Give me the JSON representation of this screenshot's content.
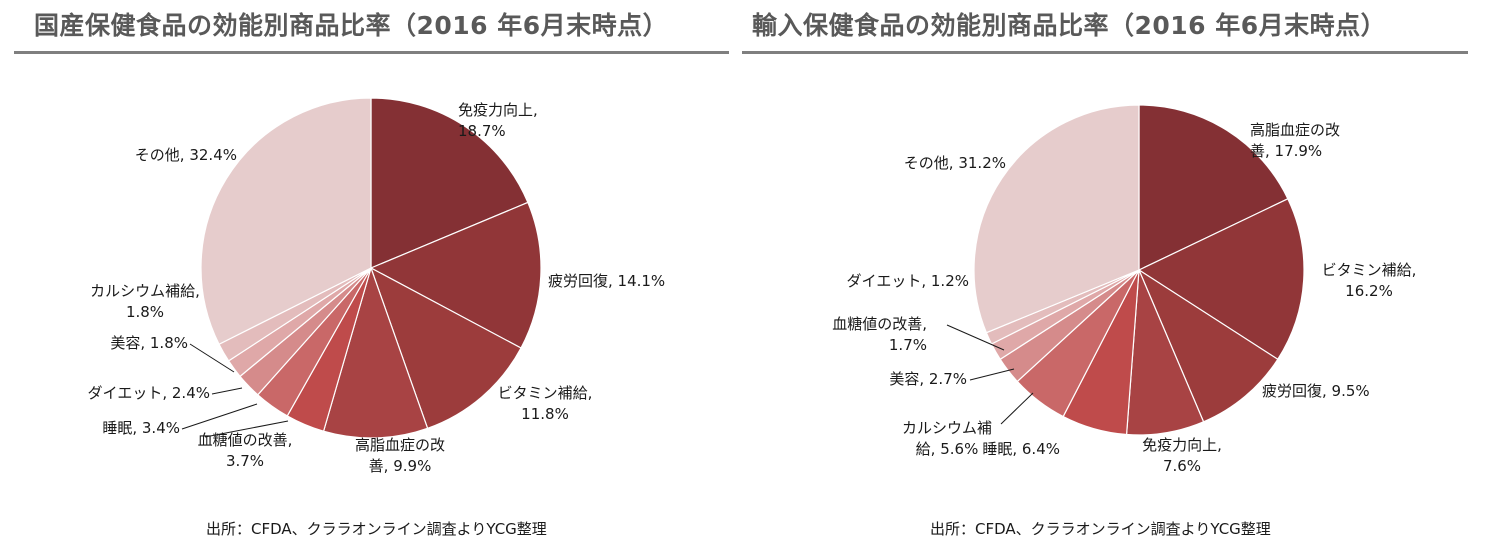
{
  "charts": {
    "left": {
      "title": "国産保健食品の効能別商品比率（2016 年6月末時点）",
      "source": "出所：CFDA、クララオンライン調査よりYCG整理"
    },
    "right": {
      "title": "輸入保健食品の効能別商品比率（2016 年6月末時点）",
      "source": "出所：CFDA、クララオンライン調査よりYCG整理"
    }
  },
  "chart_data": [
    {
      "type": "pie",
      "title": "国産保健食品の効能別商品比率（2016 年6月末時点）",
      "slices": [
        {
          "label": "免疫力向上",
          "value": 18.7,
          "value_label": "18.7%",
          "color": "#843034",
          "label_lines": [
            "免疫力向上,",
            "18.7%"
          ]
        },
        {
          "label": "疲労回復",
          "value": 14.1,
          "value_label": "14.1%",
          "color": "#913638",
          "label_lines": [
            "疲労回復, 14.1%"
          ]
        },
        {
          "label": "ビタミン補給",
          "value": 11.8,
          "value_label": "11.8%",
          "color": "#9c3c3c",
          "label_lines": [
            "ビタミン補給,",
            "11.8%"
          ]
        },
        {
          "label": "高脂血症の改善",
          "value": 9.9,
          "value_label": "9.9%",
          "color": "#a84344",
          "label_lines": [
            "高脂血症の改",
            "善, 9.9%"
          ]
        },
        {
          "label": "血糖値の改善",
          "value": 3.7,
          "value_label": "3.7%",
          "color": "#bf4b4b",
          "label_lines": [
            "血糖値の改善,",
            "3.7%"
          ]
        },
        {
          "label": "睡眠",
          "value": 3.4,
          "value_label": "3.4%",
          "color": "#c96868",
          "label_lines": [
            "睡眠, 3.4%"
          ]
        },
        {
          "label": "ダイエット",
          "value": 2.4,
          "value_label": "2.4%",
          "color": "#d58b8b",
          "label_lines": [
            "ダイエット, 2.4%"
          ]
        },
        {
          "label": "美容",
          "value": 1.8,
          "value_label": "1.8%",
          "color": "#dfa8a8",
          "label_lines": [
            "美容, 1.8%"
          ]
        },
        {
          "label": "カルシウム補給",
          "value": 1.8,
          "value_label": "1.8%",
          "color": "#e3bcbc",
          "label_lines": [
            "カルシウム補給,",
            "1.8%"
          ]
        },
        {
          "label": "その他",
          "value": 32.4,
          "value_label": "32.4%",
          "color": "#e6cccc",
          "label_lines": [
            "その他, 32.4%"
          ]
        }
      ]
    },
    {
      "type": "pie",
      "title": "輸入保健食品の効能別商品比率（2016 年6月末時点）",
      "slices": [
        {
          "label": "高脂血症の改善",
          "value": 17.9,
          "value_label": "17.9%",
          "color": "#843034",
          "label_lines": [
            "高脂血症の改",
            "善, 17.9%"
          ]
        },
        {
          "label": "ビタミン補給",
          "value": 16.2,
          "value_label": "16.2%",
          "color": "#913638",
          "label_lines": [
            "ビタミン補給,",
            "16.2%"
          ]
        },
        {
          "label": "疲労回復",
          "value": 9.5,
          "value_label": "9.5%",
          "color": "#9c3c3c",
          "label_lines": [
            "疲労回復, 9.5%"
          ]
        },
        {
          "label": "免疫力向上",
          "value": 7.6,
          "value_label": "7.6%",
          "color": "#a84344",
          "label_lines": [
            "免疫力向上,",
            "7.6%"
          ]
        },
        {
          "label": "睡眠",
          "value": 6.4,
          "value_label": "6.4%",
          "color": "#bf4b4b",
          "label_lines": [
            "睡眠, 6.4%"
          ]
        },
        {
          "label": "カルシウム補給",
          "value": 5.6,
          "value_label": "5.6%",
          "color": "#c96868",
          "label_lines": [
            "カルシウム補",
            "給, 5.6%"
          ]
        },
        {
          "label": "美容",
          "value": 2.7,
          "value_label": "2.7%",
          "color": "#d58b8b",
          "label_lines": [
            "美容, 2.7%"
          ]
        },
        {
          "label": "血糖値の改善",
          "value": 1.7,
          "value_label": "1.7%",
          "color": "#dfa8a8",
          "label_lines": [
            "血糖値の改善,",
            "1.7%"
          ]
        },
        {
          "label": "ダイエット",
          "value": 1.2,
          "value_label": "1.2%",
          "color": "#e3bcbc",
          "label_lines": [
            "ダイエット, 1.2%"
          ]
        },
        {
          "label": "その他",
          "value": 31.2,
          "value_label": "31.2%",
          "color": "#e6cccc",
          "label_lines": [
            "その他, 31.2%"
          ]
        }
      ]
    }
  ]
}
